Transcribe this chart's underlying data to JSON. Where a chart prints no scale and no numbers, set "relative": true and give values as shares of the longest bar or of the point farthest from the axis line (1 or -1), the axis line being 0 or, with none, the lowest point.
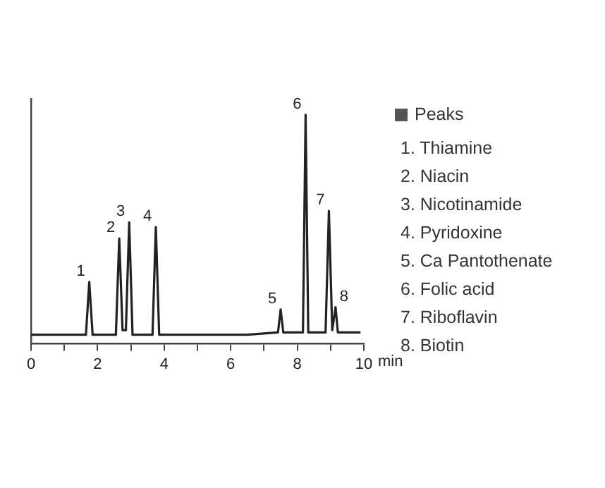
{
  "chart_data": {
    "type": "line",
    "xlabel": "min",
    "relative": true,
    "xlim": [
      0,
      10
    ],
    "xticks": [
      0,
      {
        "value": 1,
        "label": null
      },
      2,
      {
        "value": 3,
        "label": null
      },
      4,
      {
        "value": 5,
        "label": null
      },
      6,
      {
        "value": 7,
        "label": null
      },
      8,
      {
        "value": 9,
        "label": null
      },
      10
    ],
    "series": [
      {
        "color": "#222222",
        "x": [
          0,
          1.65,
          1.75,
          1.85,
          2.55,
          2.65,
          2.75,
          2.85,
          2.95,
          3.05,
          3.65,
          3.75,
          3.85,
          6.5,
          7.42,
          7.5,
          7.58,
          8.17,
          8.25,
          8.33,
          8.85,
          8.95,
          9.05,
          9.15,
          9.22,
          9.9
        ],
        "values": [
          0.04,
          0.04,
          0.27,
          0.04,
          0.04,
          0.46,
          0.06,
          0.06,
          0.53,
          0.04,
          0.04,
          0.51,
          0.04,
          0.04,
          0.05,
          0.15,
          0.05,
          0.05,
          1,
          0.05,
          0.05,
          0.58,
          0.06,
          0.16,
          0.05,
          0.05
        ]
      }
    ],
    "annotations": [
      {
        "text": "1",
        "x": 1.75,
        "y": 0.27
      },
      {
        "text": "2",
        "x": 2.65,
        "y": 0.46
      },
      {
        "text": "3",
        "x": 2.95,
        "y": 0.53
      },
      {
        "text": "4",
        "x": 3.75,
        "y": 0.51
      },
      {
        "text": "5",
        "x": 7.5,
        "y": 0.15
      },
      {
        "text": "6",
        "x": 8.25,
        "y": 1
      },
      {
        "text": "7",
        "x": 8.95,
        "y": 0.58
      },
      {
        "text": "8",
        "x": 9.15,
        "y": 0.16
      },
      "Peaks",
      "1.  Thiamine",
      "2.  Niacin",
      "3.  Nicotinamide",
      "4.  Pyridoxine",
      "5.  Ca Pantothenate",
      "6.  Folic acid",
      "7.  Riboflavin",
      "8.  Biotin"
    ],
    "legend": false,
    "grid": false,
    "marker": "none",
    "line_style": "solid"
  }
}
